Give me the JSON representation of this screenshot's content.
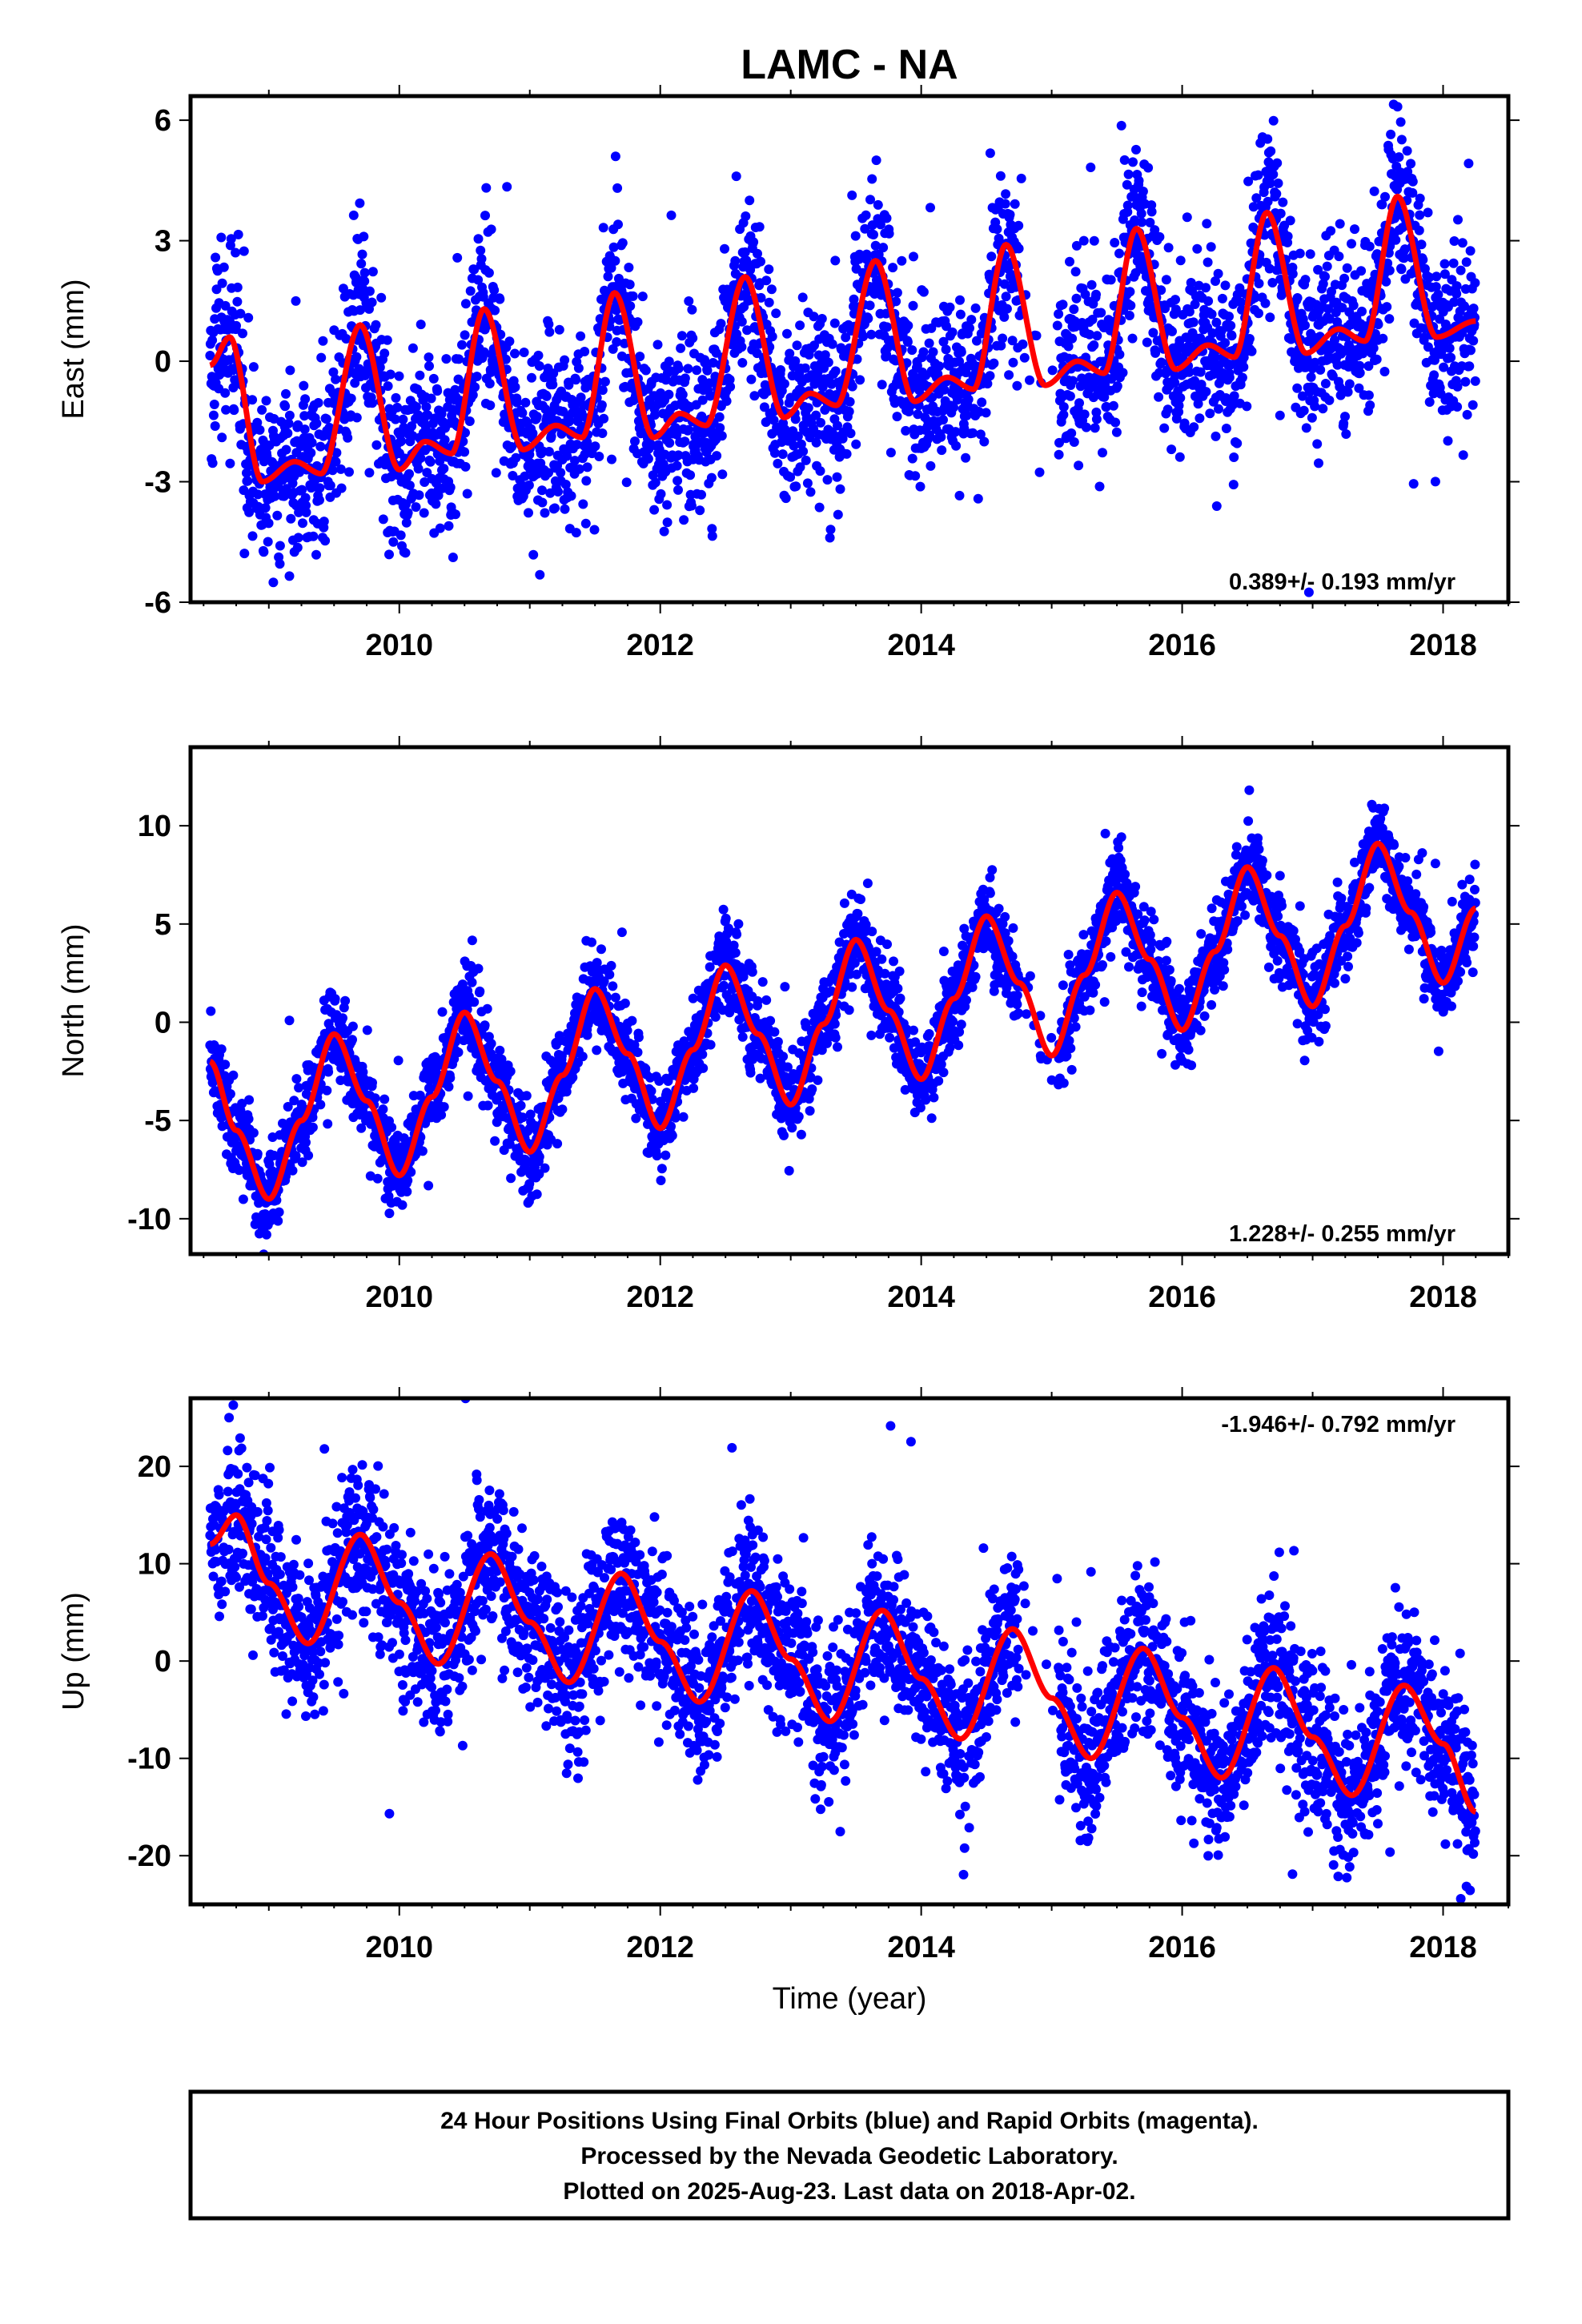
{
  "title": "LAMC - NA",
  "xlabel": "Time (year)",
  "caption": [
    "24 Hour Positions Using Final Orbits (blue) and Rapid Orbits (magenta).",
    "Processed by the Nevada Geodetic Laboratory.",
    "Plotted on 2025-Aug-23. Last data on 2018-Apr-02."
  ],
  "colors": {
    "points": "#0000ff",
    "model": "#ff0000",
    "frame": "#000000"
  },
  "chart_data": [
    {
      "type": "scatter",
      "name": "east",
      "ylabel": "East (mm)",
      "xlim": [
        2008.4,
        2018.5
      ],
      "ylim": [
        -6,
        6.6
      ],
      "xticks": [
        2010,
        2012,
        2014,
        2016,
        2018
      ],
      "yticks": [
        -6,
        -3,
        0,
        3,
        6
      ],
      "rate": "0.389+/- 0.193 mm/yr",
      "rate_position": "bottom-right",
      "time_span": [
        2008.55,
        2018.25
      ],
      "trend": 0.389,
      "offset": -0.1,
      "seasonal_amplitude": 2.1,
      "noise": 1.1,
      "model_x": [
        2008.55,
        2008.7,
        2008.95,
        2009.2,
        2009.4,
        2009.7,
        2010.0,
        2010.2,
        2010.4,
        2010.65,
        2010.95,
        2011.2,
        2011.4,
        2011.65,
        2011.95,
        2012.15,
        2012.35,
        2012.65,
        2012.95,
        2013.15,
        2013.35,
        2013.65,
        2013.95,
        2014.2,
        2014.4,
        2014.65,
        2014.95,
        2015.2,
        2015.4,
        2015.65,
        2015.95,
        2016.2,
        2016.4,
        2016.65,
        2016.95,
        2017.2,
        2017.4,
        2017.65,
        2017.95,
        2018.25
      ],
      "model_y": [
        -0.1,
        0.6,
        -3.0,
        -2.5,
        -2.8,
        0.9,
        -2.7,
        -2.0,
        -2.3,
        1.3,
        -2.2,
        -1.6,
        -1.9,
        1.7,
        -1.9,
        -1.3,
        -1.6,
        2.1,
        -1.4,
        -0.8,
        -1.1,
        2.5,
        -1.0,
        -0.4,
        -0.7,
        2.9,
        -0.6,
        0.0,
        -0.3,
        3.3,
        -0.2,
        0.4,
        0.1,
        3.7,
        0.2,
        0.8,
        0.5,
        4.1,
        0.6,
        1.0
      ]
    },
    {
      "type": "scatter",
      "name": "north",
      "ylabel": "North (mm)",
      "xlim": [
        2008.4,
        2018.5
      ],
      "ylim": [
        -11.8,
        14
      ],
      "xticks": [
        2010,
        2012,
        2014,
        2016,
        2018
      ],
      "yticks": [
        -10,
        -5,
        0,
        5,
        10
      ],
      "rate": "1.228+/- 0.255 mm/yr",
      "rate_position": "bottom-right",
      "time_span": [
        2008.55,
        2018.25
      ],
      "trend": 1.228,
      "offset": -4.0,
      "seasonal_amplitude": 4.2,
      "noise": 1.1,
      "model_x": [
        2008.55,
        2008.75,
        2009.0,
        2009.25,
        2009.5,
        2009.75,
        2010.0,
        2010.25,
        2010.5,
        2010.75,
        2011.0,
        2011.25,
        2011.5,
        2011.75,
        2012.0,
        2012.25,
        2012.5,
        2012.75,
        2013.0,
        2013.25,
        2013.5,
        2013.75,
        2014.0,
        2014.25,
        2014.5,
        2014.75,
        2015.0,
        2015.25,
        2015.5,
        2015.75,
        2016.0,
        2016.25,
        2016.5,
        2016.75,
        2017.0,
        2017.25,
        2017.5,
        2017.75,
        2018.0,
        2018.25
      ],
      "model_y": [
        -2.0,
        -5.5,
        -9.0,
        -5.0,
        -0.6,
        -4.0,
        -7.8,
        -3.8,
        0.5,
        -3.0,
        -6.6,
        -2.7,
        1.7,
        -1.6,
        -5.4,
        -1.4,
        2.9,
        -0.6,
        -4.2,
        -0.1,
        4.2,
        0.6,
        -2.9,
        1.2,
        5.4,
        2.0,
        -1.7,
        2.4,
        6.6,
        3.2,
        -0.4,
        3.6,
        7.9,
        4.4,
        0.8,
        4.9,
        9.1,
        5.6,
        2.0,
        5.8
      ]
    },
    {
      "type": "scatter",
      "name": "up",
      "ylabel": "Up (mm)",
      "xlim": [
        2008.4,
        2018.5
      ],
      "ylim": [
        -25,
        27
      ],
      "xticks": [
        2010,
        2012,
        2014,
        2016,
        2018
      ],
      "yticks": [
        -20,
        -10,
        0,
        10,
        20
      ],
      "rate": "-1.946+/- 0.792 mm/yr",
      "rate_position": "top-right",
      "time_span": [
        2008.55,
        2018.25
      ],
      "trend": -1.946,
      "offset": 8.5,
      "seasonal_amplitude": 6.0,
      "noise": 4.0,
      "model_x": [
        2008.55,
        2008.75,
        2009.0,
        2009.3,
        2009.7,
        2010.0,
        2010.3,
        2010.7,
        2011.0,
        2011.3,
        2011.7,
        2012.0,
        2012.3,
        2012.7,
        2013.0,
        2013.3,
        2013.7,
        2014.0,
        2014.3,
        2014.7,
        2015.0,
        2015.3,
        2015.7,
        2016.0,
        2016.3,
        2016.7,
        2017.0,
        2017.3,
        2017.7,
        2018.0,
        2018.25
      ],
      "model_y": [
        12.0,
        15.0,
        8.0,
        1.8,
        13.0,
        6.0,
        -0.3,
        11.0,
        4.0,
        -2.2,
        9.0,
        2.0,
        -4.2,
        7.2,
        0.2,
        -6.2,
        5.2,
        -1.8,
        -8.0,
        3.3,
        -3.8,
        -10.0,
        1.3,
        -5.8,
        -12.0,
        -0.7,
        -7.8,
        -13.8,
        -2.5,
        -8.5,
        -15.5
      ]
    }
  ]
}
